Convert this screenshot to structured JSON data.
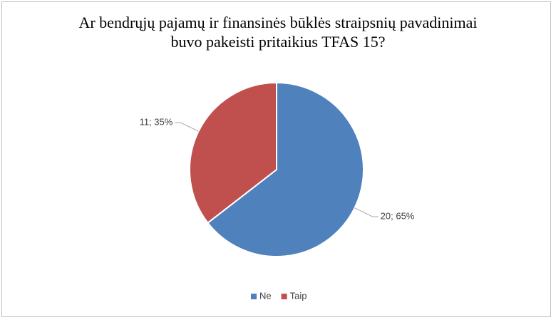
{
  "chart_data": {
    "type": "pie",
    "title": "Ar bendrųjų pajamų ir finansinės būklės straipsnių pavadinimai buvo pakeisti pritaikius TFAS 15?",
    "categories": [
      "Ne",
      "Taip"
    ],
    "values": [
      20,
      11
    ],
    "value_labels": [
      "20; 65%",
      "11; 35%"
    ],
    "colors": [
      "#4f81bd",
      "#c0504d"
    ],
    "legend": "bottom"
  }
}
